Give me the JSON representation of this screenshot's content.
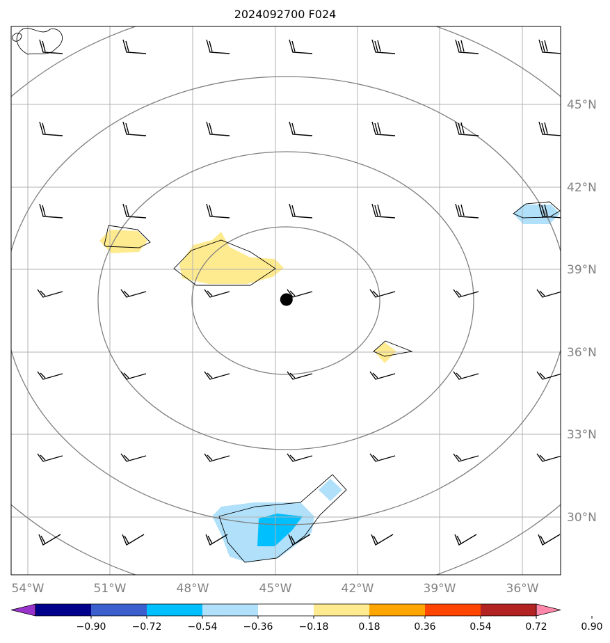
{
  "title": "2024092700 F024",
  "map": {
    "lon_labels": [
      "54°W",
      "51°W",
      "48°W",
      "45°W",
      "42°W",
      "39°W",
      "36°W"
    ],
    "lat_labels": [
      "45°N",
      "42°N",
      "39°N",
      "36°N",
      "33°N",
      "30°N"
    ],
    "storm_center": {
      "lon": -44.6,
      "lat": 37.9
    },
    "colors": {
      "gridline": "#b0b0b0",
      "contour": "#7f7f7f",
      "outline": "#000000"
    }
  },
  "colorbar": {
    "tick_labels": [
      "−0.90",
      "−0.72",
      "−0.54",
      "−0.36",
      "−0.18",
      "0.18",
      "0.36",
      "0.54",
      "0.72",
      "0.90"
    ],
    "colors": [
      "#9933cc",
      "#00008b",
      "#3b5fcd",
      "#00bfff",
      "#b0e0fa",
      "#ffffff",
      "#ffeb8f",
      "#ffa500",
      "#ff4500",
      "#b22222",
      "#ff88aa"
    ]
  }
}
